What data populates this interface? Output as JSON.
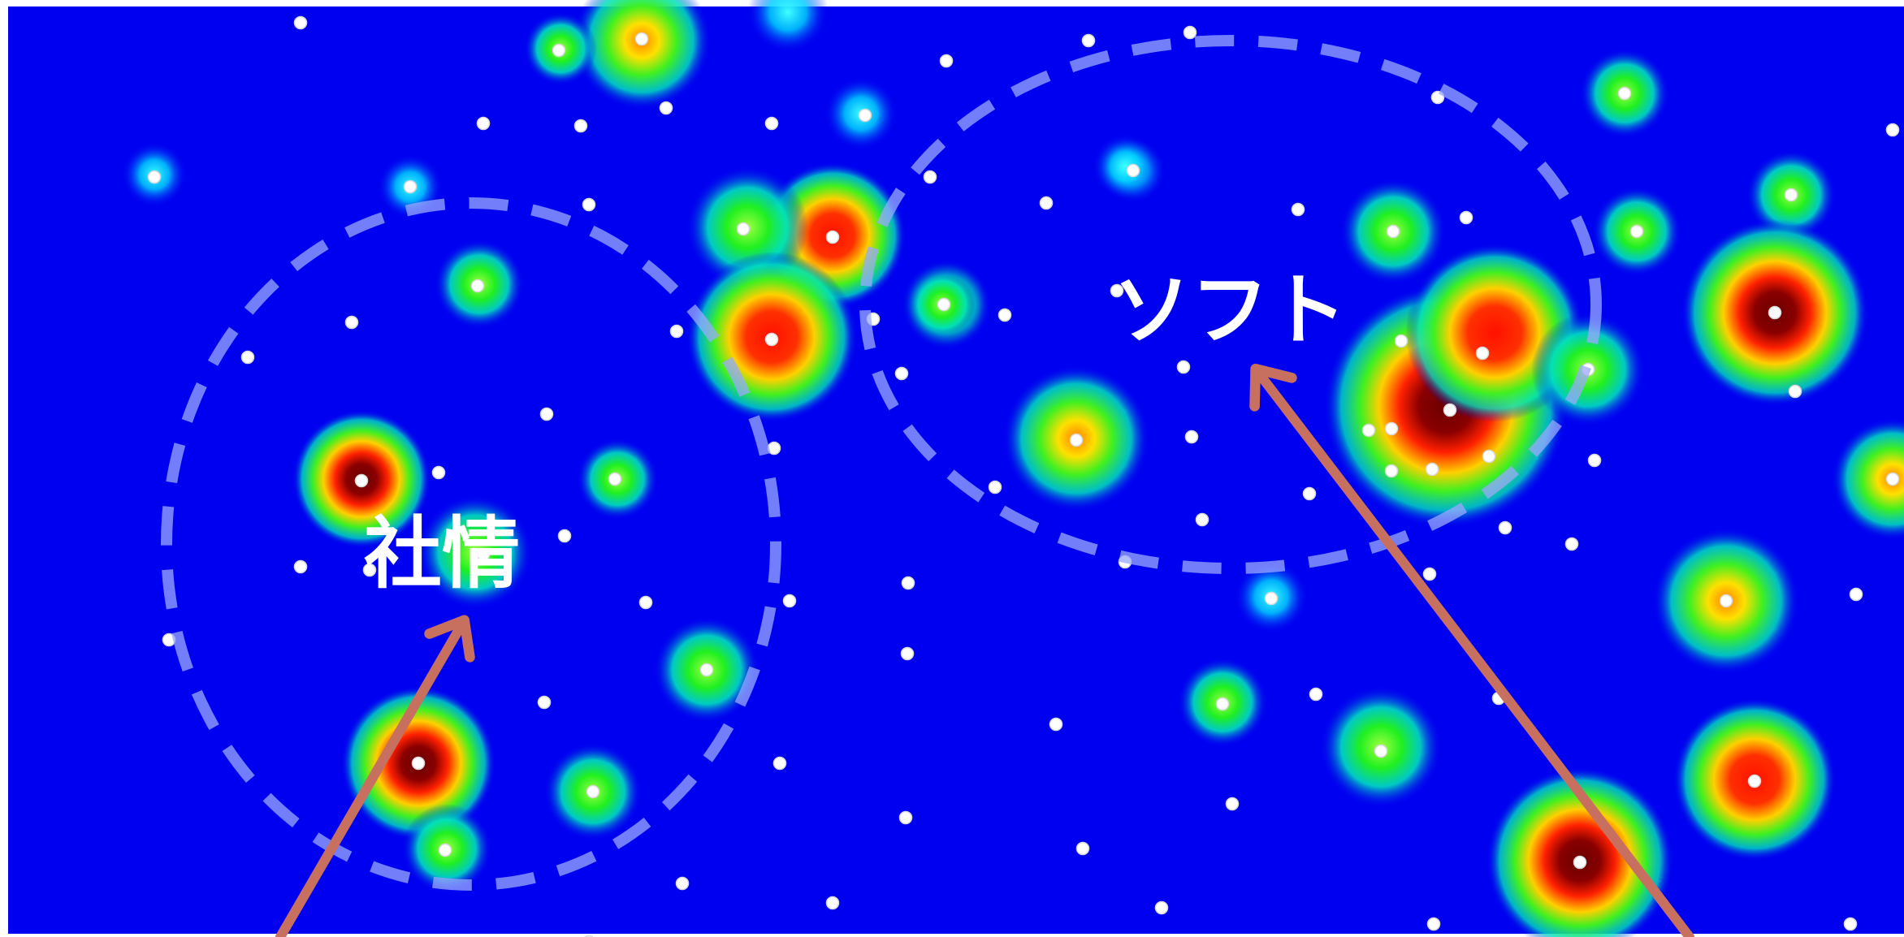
{
  "regions": [
    {
      "id": "shajo",
      "label": "社情"
    },
    {
      "id": "soft",
      "label": "ソフト"
    }
  ],
  "colors": {
    "background": "#0000f0",
    "heat_low": "#00e0ff",
    "heat_mid": "#20f020",
    "heat_high": "#ffe000",
    "heat_peak": "#ff2000",
    "heat_core": "#7a0000",
    "point": "#ffffff",
    "region_outline": "#9aa8ff",
    "arrow": "#c87060",
    "label": "#ffffff"
  }
}
